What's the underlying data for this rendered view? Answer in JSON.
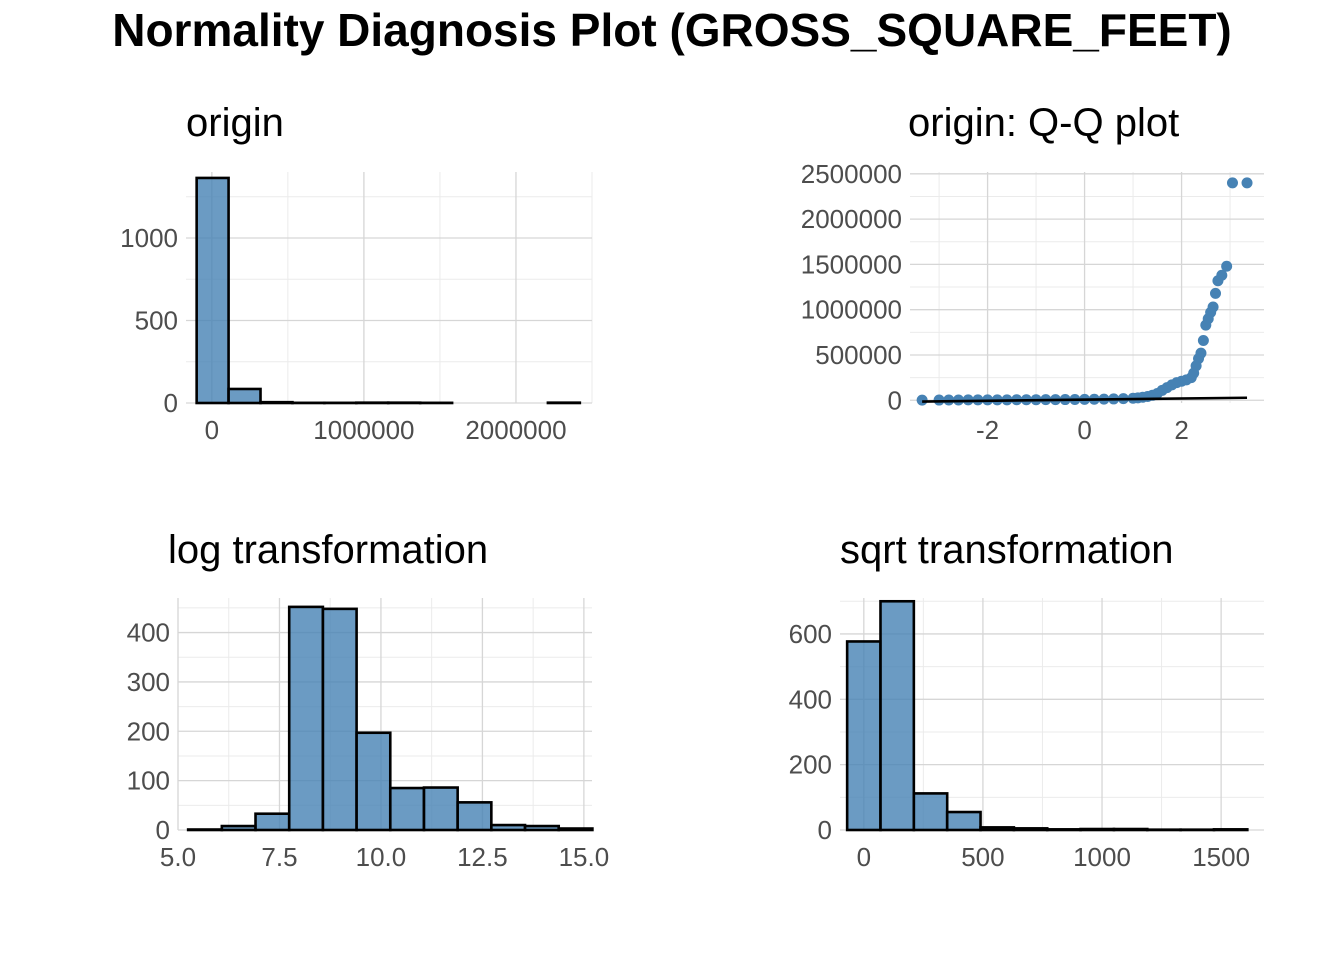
{
  "title": "Normality Diagnosis Plot (GROSS_SQUARE_FEET)",
  "colors": {
    "fill": "#4682b4",
    "outline": "#000000",
    "line": "#000000",
    "grid": "#d6d6d6"
  },
  "chart_data": [
    {
      "type": "bar",
      "title": "origin",
      "xlabel": "",
      "ylabel": "",
      "xlim": [
        -170000,
        2500000
      ],
      "ylim": [
        0,
        1400
      ],
      "x_ticks": [
        0,
        1000000,
        2000000
      ],
      "x_tick_labels": [
        "0",
        "1000000",
        "2000000"
      ],
      "y_ticks": [
        0,
        500,
        1000
      ],
      "y_tick_labels": [
        "0",
        "500",
        "1000"
      ],
      "bins": [
        {
          "x0": -100000,
          "x1": 110000,
          "count": 1364
        },
        {
          "x0": 110000,
          "x1": 320000,
          "count": 85
        },
        {
          "x0": 320000,
          "x1": 530000,
          "count": 5
        },
        {
          "x0": 530000,
          "x1": 740000,
          "count": 1
        },
        {
          "x0": 740000,
          "x1": 950000,
          "count": 1
        },
        {
          "x0": 950000,
          "x1": 1160000,
          "count": 2
        },
        {
          "x0": 1160000,
          "x1": 1370000,
          "count": 2
        },
        {
          "x0": 1370000,
          "x1": 1580000,
          "count": 1
        },
        {
          "x0": 1580000,
          "x1": 1790000,
          "count": 0
        },
        {
          "x0": 1790000,
          "x1": 2000000,
          "count": 0
        },
        {
          "x0": 2000000,
          "x1": 2210000,
          "count": 0
        },
        {
          "x0": 2210000,
          "x1": 2420000,
          "count": 2
        }
      ],
      "grid": true
    },
    {
      "type": "scatter",
      "title": "origin: Q-Q plot",
      "xlabel": "",
      "ylabel": "",
      "xlim": [
        -3.6,
        3.7
      ],
      "ylim": [
        -30000,
        2520000
      ],
      "x_ticks": [
        -2,
        0,
        2
      ],
      "x_tick_labels": [
        "-2",
        "0",
        "2"
      ],
      "y_ticks": [
        0,
        500000,
        1000000,
        1500000,
        2000000,
        2500000
      ],
      "y_tick_labels": [
        "0",
        "500000",
        "1000000",
        "1500000",
        "2000000",
        "2500000"
      ],
      "points": [
        [
          -3.35,
          2000
        ],
        [
          -3.0,
          2500
        ],
        [
          -2.8,
          3000
        ],
        [
          -2.6,
          3500
        ],
        [
          -2.4,
          4000
        ],
        [
          -2.2,
          4200
        ],
        [
          -2.0,
          4500
        ],
        [
          -1.8,
          4800
        ],
        [
          -1.6,
          5000
        ],
        [
          -1.4,
          5500
        ],
        [
          -1.2,
          6000
        ],
        [
          -1.0,
          6500
        ],
        [
          -0.8,
          7000
        ],
        [
          -0.6,
          7500
        ],
        [
          -0.4,
          8000
        ],
        [
          -0.2,
          9000
        ],
        [
          0.0,
          10000
        ],
        [
          0.2,
          11000
        ],
        [
          0.4,
          13000
        ],
        [
          0.6,
          15000
        ],
        [
          0.8,
          18000
        ],
        [
          1.0,
          22000
        ],
        [
          1.1,
          27000
        ],
        [
          1.2,
          33000
        ],
        [
          1.3,
          42000
        ],
        [
          1.4,
          55000
        ],
        [
          1.5,
          75000
        ],
        [
          1.6,
          110000
        ],
        [
          1.7,
          140000
        ],
        [
          1.8,
          170000
        ],
        [
          1.9,
          195000
        ],
        [
          2.0,
          210000
        ],
        [
          2.1,
          225000
        ],
        [
          2.2,
          250000
        ],
        [
          2.25,
          300000
        ],
        [
          2.3,
          380000
        ],
        [
          2.35,
          460000
        ],
        [
          2.4,
          520000
        ],
        [
          2.45,
          660000
        ],
        [
          2.5,
          830000
        ],
        [
          2.55,
          900000
        ],
        [
          2.6,
          970000
        ],
        [
          2.65,
          1030000
        ],
        [
          2.7,
          1180000
        ],
        [
          2.75,
          1320000
        ],
        [
          2.83,
          1380000
        ],
        [
          2.93,
          1480000
        ],
        [
          3.05,
          2400000
        ],
        [
          3.35,
          2400000
        ]
      ],
      "reference_line": {
        "x": [
          -3.35,
          3.35
        ],
        "y": [
          -14000,
          28000
        ]
      },
      "grid": true
    },
    {
      "type": "bar",
      "title": "log transformation",
      "xlabel": "",
      "ylabel": "",
      "xlim": [
        5.0,
        15.2
      ],
      "ylim": [
        0,
        470
      ],
      "x_ticks": [
        5.0,
        7.5,
        10.0,
        12.5,
        15.0
      ],
      "x_tick_labels": [
        "5.0",
        "7.5",
        "10.0",
        "12.5",
        "15.0"
      ],
      "y_ticks": [
        0,
        100,
        200,
        300,
        400
      ],
      "y_tick_labels": [
        "0",
        "100",
        "200",
        "300",
        "400"
      ],
      "bins": [
        {
          "x0": 5.25,
          "x1": 6.08,
          "count": 1
        },
        {
          "x0": 6.08,
          "x1": 6.91,
          "count": 8
        },
        {
          "x0": 6.91,
          "x1": 7.74,
          "count": 33
        },
        {
          "x0": 7.74,
          "x1": 8.57,
          "count": 452
        },
        {
          "x0": 8.57,
          "x1": 9.4,
          "count": 448
        },
        {
          "x0": 9.4,
          "x1": 10.23,
          "count": 197
        },
        {
          "x0": 10.23,
          "x1": 11.06,
          "count": 85
        },
        {
          "x0": 11.06,
          "x1": 11.89,
          "count": 86
        },
        {
          "x0": 11.89,
          "x1": 12.72,
          "count": 56
        },
        {
          "x0": 12.72,
          "x1": 13.55,
          "count": 10
        },
        {
          "x0": 13.55,
          "x1": 14.38,
          "count": 8
        },
        {
          "x0": 14.38,
          "x1": 15.21,
          "count": 3
        }
      ],
      "grid": true
    },
    {
      "type": "bar",
      "title": "sqrt transformation",
      "xlabel": "",
      "ylabel": "",
      "xlim": [
        -100,
        1680
      ],
      "ylim": [
        0,
        710
      ],
      "x_ticks": [
        0,
        500,
        1000,
        1500
      ],
      "x_tick_labels": [
        "0",
        "500",
        "1000",
        "1500"
      ],
      "y_ticks": [
        0,
        200,
        400,
        600
      ],
      "y_tick_labels": [
        "0",
        "200",
        "400",
        "600"
      ],
      "bins": [
        {
          "x0": -70,
          "x1": 70,
          "count": 577
        },
        {
          "x0": 70,
          "x1": 210,
          "count": 700
        },
        {
          "x0": 210,
          "x1": 350,
          "count": 112
        },
        {
          "x0": 350,
          "x1": 490,
          "count": 55
        },
        {
          "x0": 490,
          "x1": 630,
          "count": 8
        },
        {
          "x0": 630,
          "x1": 770,
          "count": 5
        },
        {
          "x0": 770,
          "x1": 910,
          "count": 2
        },
        {
          "x0": 910,
          "x1": 1050,
          "count": 3
        },
        {
          "x0": 1050,
          "x1": 1190,
          "count": 3
        },
        {
          "x0": 1190,
          "x1": 1330,
          "count": 1
        },
        {
          "x0": 1330,
          "x1": 1470,
          "count": 1
        },
        {
          "x0": 1470,
          "x1": 1610,
          "count": 2
        }
      ],
      "grid": true
    }
  ]
}
